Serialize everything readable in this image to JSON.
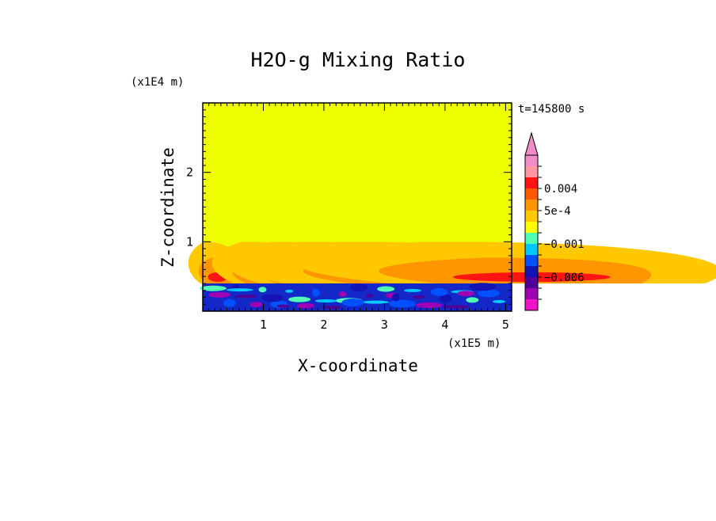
{
  "chart_data": {
    "type": "heatmap",
    "title": "H2O-g Mixing Ratio",
    "xlabel": "X-coordinate",
    "ylabel": "Z-coordinate",
    "x_scale_label": "(x1E5 m)",
    "z_scale_label": "(x1E4 m)",
    "time_label": "t=145800 s",
    "xlim": [
      0,
      5.1
    ],
    "ylim": [
      0,
      3
    ],
    "x_ticks": [
      {
        "value": 1,
        "label": "1"
      },
      {
        "value": 2,
        "label": "2"
      },
      {
        "value": 3,
        "label": "3"
      },
      {
        "value": 4,
        "label": "4"
      },
      {
        "value": 5,
        "label": "5"
      }
    ],
    "y_ticks": [
      {
        "value": 1,
        "label": "1"
      },
      {
        "value": 2,
        "label": "2"
      }
    ],
    "field": {
      "background": "#f0ff00",
      "surface_layer_top": 0.4,
      "surface_layer_color": "#1428c8",
      "plumes_top": 1.0
    },
    "colorbar": {
      "levels": [
        {
          "color": "#f08cc8"
        },
        {
          "color": "#ff96a0"
        },
        {
          "color": "#ff1414"
        },
        {
          "color": "#ff5a00"
        },
        {
          "color": "#ff9600"
        },
        {
          "color": "#ffc800"
        },
        {
          "color": "#ffff00"
        },
        {
          "color": "#50ffb4"
        },
        {
          "color": "#00c8ff"
        },
        {
          "color": "#0050ff"
        },
        {
          "color": "#1414b4"
        },
        {
          "color": "#500096"
        },
        {
          "color": "#a000b4"
        },
        {
          "color": "#f014c8"
        }
      ],
      "labels": [
        {
          "text": "0.004",
          "level": 3
        },
        {
          "text": "5e-4",
          "level": 5
        },
        {
          "text": "−0.001",
          "level": 8
        },
        {
          "text": "−0.006",
          "level": 11
        }
      ]
    }
  }
}
